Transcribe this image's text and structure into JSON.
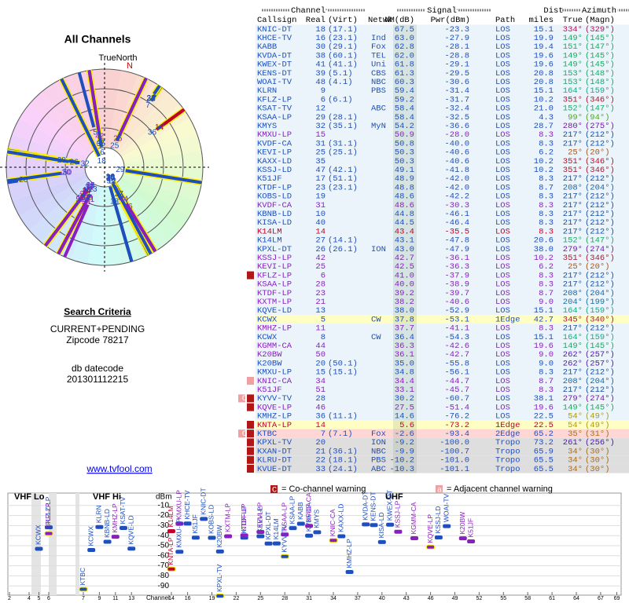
{
  "polar": {
    "title": "All Channels",
    "north_label": "TrueNorth",
    "n": "N"
  },
  "sidebar": {
    "criteria_title": "Search Criteria",
    "criteria": "CURRENT+PENDING",
    "zipcode": "Zipcode 78217",
    "db_label": "db datecode",
    "db_code": "201301112215",
    "link": "www.tvfool.com"
  },
  "table": {
    "groups": [
      "Channel",
      "Signal",
      "Dist",
      "Azimuth"
    ],
    "headers": [
      "Callsign",
      "Real",
      "(Virt)",
      "Netwk",
      "NM(dB)",
      "Pwr(dBm)",
      "Path",
      "miles",
      "True",
      "(Magn)"
    ],
    "rows": [
      {
        "callsign": "KNIC-DT",
        "real": "18",
        "virt": "(17.1)",
        "nm": "67.5",
        "pwr": "-23.3",
        "path": "LOS",
        "dist": "15.1",
        "true": "334°",
        "magn": "(329°)",
        "color": "#1f4fbf"
      },
      {
        "callsign": "KHCE-TV",
        "real": "16",
        "virt": "(23.1)",
        "netwk": "Ind",
        "nm": "63.0",
        "pwr": "-27.9",
        "path": "LOS",
        "dist": "19.9",
        "true": "149°",
        "magn": "(145°)",
        "color": "#1f4fbf"
      },
      {
        "callsign": "KABB",
        "real": "30",
        "virt": "(29.1)",
        "netwk": "Fox",
        "nm": "62.8",
        "pwr": "-28.1",
        "path": "LOS",
        "dist": "19.4",
        "true": "151°",
        "magn": "(147°)",
        "color": "#1f4fbf"
      },
      {
        "callsign": "KVDA-DT",
        "real": "38",
        "virt": "(60.1)",
        "netwk": "TEL",
        "nm": "62.0",
        "pwr": "-28.8",
        "path": "LOS",
        "dist": "19.6",
        "true": "149°",
        "magn": "(145°)",
        "color": "#1f4fbf"
      },
      {
        "callsign": "KWEX-DT",
        "real": "41",
        "virt": "(41.1)",
        "netwk": "Uni",
        "nm": "61.8",
        "pwr": "-29.1",
        "path": "LOS",
        "dist": "19.6",
        "true": "149°",
        "magn": "(145°)",
        "color": "#1f4fbf"
      },
      {
        "callsign": "KENS-DT",
        "real": "39",
        "virt": "(5.1)",
        "netwk": "CBS",
        "nm": "61.3",
        "pwr": "-29.5",
        "path": "LOS",
        "dist": "20.8",
        "true": "153°",
        "magn": "(148°)",
        "color": "#1f4fbf"
      },
      {
        "callsign": "WOAI-TV",
        "real": "48",
        "virt": "(4.1)",
        "netwk": "NBC",
        "nm": "60.3",
        "pwr": "-30.6",
        "path": "LOS",
        "dist": "20.8",
        "true": "153°",
        "magn": "(148°)",
        "color": "#1f4fbf"
      },
      {
        "callsign": "KLRN",
        "real": "9",
        "netwk": "PBS",
        "nm": "59.4",
        "pwr": "-31.4",
        "path": "LOS",
        "dist": "15.1",
        "true": "164°",
        "magn": "(159°)",
        "color": "#1f4fbf"
      },
      {
        "callsign": "KFLZ-LP",
        "real": "6",
        "virt": "(6.1)",
        "nm": "59.2",
        "pwr": "-31.7",
        "path": "LOS",
        "dist": "10.2",
        "true": "351°",
        "magn": "(346°)",
        "color": "#1f4fbf"
      },
      {
        "callsign": "KSAT-TV",
        "real": "12",
        "netwk": "ABC",
        "nm": "58.4",
        "pwr": "-32.4",
        "path": "LOS",
        "dist": "21.0",
        "true": "152°",
        "magn": "(147°)",
        "color": "#1f4fbf"
      },
      {
        "callsign": "KSAA-LP",
        "real": "29",
        "virt": "(28.1)",
        "nm": "58.4",
        "pwr": "-32.5",
        "path": "LOS",
        "dist": "4.3",
        "true": "99°",
        "magn": "(94°)",
        "color": "#1f4fbf"
      },
      {
        "callsign": "KMYS",
        "real": "32",
        "virt": "(35.1)",
        "netwk": "MyN",
        "nm": "54.2",
        "pwr": "-36.6",
        "path": "LOS",
        "dist": "28.7",
        "true": "280°",
        "magn": "(275°)",
        "color": "#1f4fbf"
      },
      {
        "callsign": "KMXU-LP",
        "real": "15",
        "nm": "50.9",
        "pwr": "-28.0",
        "path": "LOS",
        "dist": "8.3",
        "true": "217°",
        "magn": "(212°)",
        "color": "#8a1fc0"
      },
      {
        "callsign": "KVDF-CA",
        "real": "31",
        "virt": "(31.1)",
        "nm": "50.8",
        "pwr": "-40.0",
        "path": "LOS",
        "dist": "8.3",
        "true": "217°",
        "magn": "(212°)",
        "color": "#1f4fbf"
      },
      {
        "callsign": "KEVI-LP",
        "real": "25",
        "virt": "(25.1)",
        "nm": "50.3",
        "pwr": "-40.6",
        "path": "LOS",
        "dist": "6.2",
        "true": "25°",
        "magn": "(20°)",
        "color": "#1f4fbf"
      },
      {
        "callsign": "KAXX-LD",
        "real": "35",
        "nm": "50.3",
        "pwr": "-40.6",
        "path": "LOS",
        "dist": "10.2",
        "true": "351°",
        "magn": "(346°)",
        "color": "#1f4fbf"
      },
      {
        "callsign": "KSSJ-LD",
        "real": "47",
        "virt": "(42.1)",
        "nm": "49.1",
        "pwr": "-41.8",
        "path": "LOS",
        "dist": "10.2",
        "true": "351°",
        "magn": "(346°)",
        "color": "#1f4fbf"
      },
      {
        "callsign": "K51JF",
        "real": "17",
        "virt": "(51.1)",
        "nm": "48.9",
        "pwr": "-42.0",
        "path": "LOS",
        "dist": "8.3",
        "true": "217°",
        "magn": "(212°)",
        "color": "#1f4fbf"
      },
      {
        "callsign": "KTDF-LP",
        "real": "23",
        "virt": "(23.1)",
        "nm": "48.8",
        "pwr": "-42.0",
        "path": "LOS",
        "dist": "8.7",
        "true": "208°",
        "magn": "(204°)",
        "color": "#1f4fbf"
      },
      {
        "callsign": "KOBS-LD",
        "real": "19",
        "nm": "48.6",
        "pwr": "-42.2",
        "path": "LOS",
        "dist": "8.3",
        "true": "217°",
        "magn": "(212°)",
        "color": "#1f4fbf"
      },
      {
        "callsign": "KVDF-CA",
        "real": "31",
        "nm": "48.6",
        "pwr": "-30.3",
        "path": "LOS",
        "dist": "8.3",
        "true": "217°",
        "magn": "(212°)",
        "color": "#8a1fc0"
      },
      {
        "callsign": "KBNB-LD",
        "real": "10",
        "nm": "44.8",
        "pwr": "-46.1",
        "path": "LOS",
        "dist": "8.3",
        "true": "217°",
        "magn": "(212°)",
        "color": "#1f4fbf"
      },
      {
        "callsign": "KISA-LD",
        "real": "40",
        "nm": "44.5",
        "pwr": "-46.4",
        "path": "LOS",
        "dist": "8.3",
        "true": "217°",
        "magn": "(212°)",
        "color": "#1f4fbf"
      },
      {
        "callsign": "K14LM",
        "real": "14",
        "nm": "43.4",
        "pwr": "-35.5",
        "path": "LOS",
        "dist": "8.3",
        "true": "217°",
        "magn": "(212°)",
        "color": "#c4002a"
      },
      {
        "callsign": "K14LM",
        "real": "27",
        "virt": "(14.1)",
        "nm": "43.1",
        "pwr": "-47.8",
        "path": "LOS",
        "dist": "20.6",
        "true": "152°",
        "magn": "(147°)",
        "color": "#1f4fbf"
      },
      {
        "callsign": "KPXL-DT",
        "real": "26",
        "virt": "(26.1)",
        "netwk": "ION",
        "nm": "43.0",
        "pwr": "-47.9",
        "path": "LOS",
        "dist": "38.0",
        "true": "279°",
        "magn": "(274°)",
        "color": "#1f4fbf"
      },
      {
        "callsign": "KSSJ-LP",
        "real": "42",
        "nm": "42.7",
        "pwr": "-36.1",
        "path": "LOS",
        "dist": "10.2",
        "true": "351°",
        "magn": "(346°)",
        "color": "#8a1fc0"
      },
      {
        "callsign": "KEVI-LP",
        "real": "25",
        "nm": "42.5",
        "pwr": "-36.3",
        "path": "LOS",
        "dist": "6.2",
        "true": "25°",
        "magn": "(20°)",
        "color": "#8a1fc0"
      },
      {
        "callsign": "KFLZ-LP",
        "real": "6",
        "nm": "41.0",
        "pwr": "-37.9",
        "path": "LOS",
        "dist": "8.3",
        "true": "217°",
        "magn": "(212°)",
        "color": "#8a1fc0",
        "flags": "C"
      },
      {
        "callsign": "KSAA-LP",
        "real": "28",
        "nm": "40.0",
        "pwr": "-38.9",
        "path": "LOS",
        "dist": "8.3",
        "true": "217°",
        "magn": "(212°)",
        "color": "#8a1fc0"
      },
      {
        "callsign": "KTDF-LP",
        "real": "23",
        "nm": "39.2",
        "pwr": "-39.7",
        "path": "LOS",
        "dist": "8.7",
        "true": "208°",
        "magn": "(204°)",
        "color": "#8a1fc0"
      },
      {
        "callsign": "KXTM-LP",
        "real": "21",
        "nm": "38.2",
        "pwr": "-40.6",
        "path": "LOS",
        "dist": "9.0",
        "true": "204°",
        "magn": "(199°)",
        "color": "#8a1fc0"
      },
      {
        "callsign": "KQVE-LD",
        "real": "13",
        "nm": "38.0",
        "pwr": "-52.9",
        "path": "LOS",
        "dist": "15.1",
        "true": "164°",
        "magn": "(159°)",
        "color": "#1f4fbf"
      },
      {
        "callsign": "KCWX",
        "real": "5",
        "netwk": "CW",
        "nm": "37.8",
        "pwr": "-53.1",
        "path": "1Edge",
        "dist": "42.7",
        "true": "345°",
        "magn": "(340°)",
        "color": "#1f4fbf"
      },
      {
        "callsign": "KMHZ-LP",
        "real": "11",
        "nm": "37.7",
        "pwr": "-41.1",
        "path": "LOS",
        "dist": "8.3",
        "true": "217°",
        "magn": "(212°)",
        "color": "#8a1fc0"
      },
      {
        "callsign": "KCWX",
        "real": "8",
        "netwk": "CW",
        "nm": "36.4",
        "pwr": "-54.3",
        "path": "LOS",
        "dist": "15.1",
        "true": "164°",
        "magn": "(159°)",
        "color": "#1f4fbf"
      },
      {
        "callsign": "KGMM-CA",
        "real": "44",
        "nm": "36.3",
        "pwr": "-42.6",
        "path": "LOS",
        "dist": "19.6",
        "true": "149°",
        "magn": "(145°)",
        "color": "#8a1fc0"
      },
      {
        "callsign": "K20BW",
        "real": "50",
        "nm": "36.1",
        "pwr": "-42.7",
        "path": "LOS",
        "dist": "9.0",
        "true": "262°",
        "magn": "(257°)",
        "color": "#8a1fc0"
      },
      {
        "callsign": "K20BW",
        "real": "20",
        "virt": "(50.1)",
        "nm": "35.0",
        "pwr": "-55.8",
        "path": "LOS",
        "dist": "9.0",
        "true": "262°",
        "magn": "(257°)",
        "color": "#1f4fbf"
      },
      {
        "callsign": "KMXU-LP",
        "real": "15",
        "virt": "(15.1)",
        "nm": "34.8",
        "pwr": "-56.1",
        "path": "LOS",
        "dist": "8.3",
        "true": "217°",
        "magn": "(212°)",
        "color": "#1f4fbf"
      },
      {
        "callsign": "KNIC-CA",
        "real": "34",
        "nm": "34.4",
        "pwr": "-44.7",
        "path": "LOS",
        "dist": "8.7",
        "true": "208°",
        "magn": "(204°)",
        "color": "#8a1fc0",
        "flags": "a"
      },
      {
        "callsign": "K51JF",
        "real": "51",
        "nm": "33.1",
        "pwr": "-45.7",
        "path": "LOS",
        "dist": "8.3",
        "true": "217°",
        "magn": "(212°)",
        "color": "#8a1fc0"
      },
      {
        "callsign": "KYVV-TV",
        "real": "28",
        "nm": "30.2",
        "pwr": "-60.7",
        "path": "LOS",
        "dist": "38.1",
        "true": "279°",
        "magn": "(274°)",
        "color": "#1f4fbf",
        "flags": "aC"
      },
      {
        "callsign": "KQVE-LP",
        "real": "46",
        "nm": "27.5",
        "pwr": "-51.4",
        "path": "LOS",
        "dist": "19.6",
        "true": "149°",
        "magn": "(145°)",
        "color": "#8a1fc0",
        "flags": "C"
      },
      {
        "callsign": "KMHZ-LP",
        "real": "36",
        "virt": "(11.1)",
        "nm": "14.6",
        "pwr": "-76.2",
        "path": "LOS",
        "dist": "22.5",
        "true": "54°",
        "magn": "(49°)",
        "color": "#1f4fbf"
      },
      {
        "callsign": "KNTA-LP",
        "real": "14",
        "nm": "5.6",
        "pwr": "-73.2",
        "path": "1Edge",
        "dist": "22.5",
        "true": "54°",
        "magn": "(49°)",
        "color": "#c4002a",
        "flags": "C"
      },
      {
        "callsign": "KTBC",
        "real": "7",
        "virt": "(7.1)",
        "netwk": "Fox",
        "nm": "-2.6",
        "pwr": "-93.4",
        "path": "2Edge",
        "dist": "65.2",
        "true": "35°",
        "magn": "(31°)",
        "color": "#1f4fbf",
        "flags": "aC"
      },
      {
        "callsign": "KPXL-TV",
        "real": "20",
        "netwk": "ION",
        "nm": "-9.2",
        "pwr": "-100.0",
        "path": "Tropo",
        "dist": "73.2",
        "true": "261°",
        "magn": "(256°)",
        "color": "#1f4fbf",
        "flags": "C"
      },
      {
        "callsign": "KXAN-DT",
        "real": "21",
        "virt": "(36.1)",
        "netwk": "NBC",
        "nm": "-9.9",
        "pwr": "-100.7",
        "path": "Tropo",
        "dist": "65.9",
        "true": "34°",
        "magn": "(30°)",
        "color": "#1f4fbf",
        "flags": "C"
      },
      {
        "callsign": "KLRU-DT",
        "real": "22",
        "virt": "(18.1)",
        "netwk": "PBS",
        "nm": "-10.2",
        "pwr": "-101.0",
        "path": "Tropo",
        "dist": "65.5",
        "true": "34°",
        "magn": "(30°)",
        "color": "#1f4fbf",
        "flags": "C"
      },
      {
        "callsign": "KVUE-DT",
        "real": "33",
        "virt": "(24.1)",
        "netwk": "ABC",
        "nm": "-10.3",
        "pwr": "-101.1",
        "path": "Tropo",
        "dist": "65.5",
        "true": "34°",
        "magn": "(30°)",
        "color": "#1f4fbf",
        "flags": "C"
      }
    ]
  },
  "spectrum": {
    "bands": [
      "VHF Lo",
      "VHF Hi",
      "UHF"
    ],
    "y_label": "dBm",
    "x_label": "Channel",
    "ylim": [
      -100,
      0
    ],
    "yticks": [
      -10,
      -20,
      -30,
      -40,
      -50,
      -60,
      -70,
      -80,
      -90
    ],
    "xticks": [
      2,
      4,
      5,
      6,
      7,
      9,
      11,
      13,
      14,
      16,
      19,
      22,
      25,
      28,
      31,
      34,
      37,
      40,
      43,
      46,
      49,
      52,
      55,
      58,
      61,
      64,
      67,
      69
    ],
    "legend": [
      {
        "flag": "C",
        "label": "= Co-channel warning"
      },
      {
        "flag": "a",
        "label": "= Adjacent channel warning"
      }
    ]
  }
}
